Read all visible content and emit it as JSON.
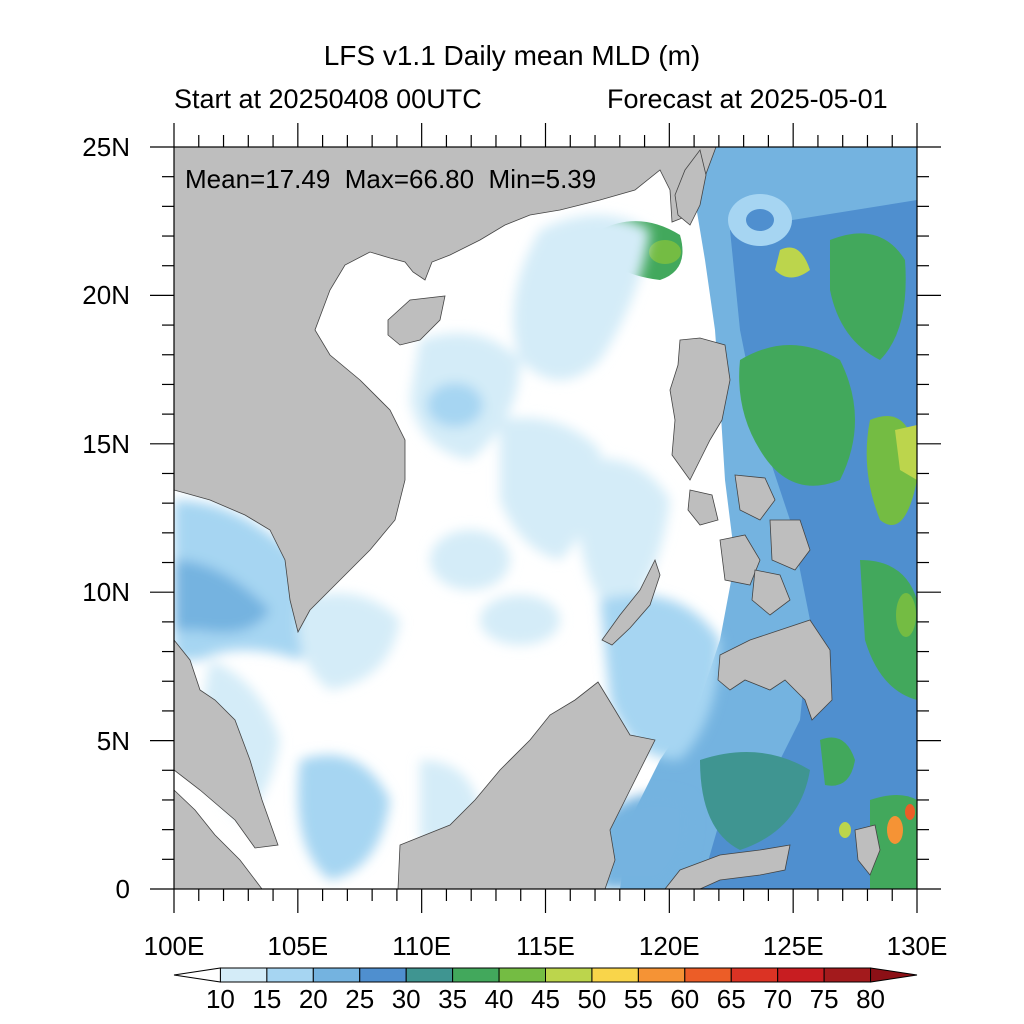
{
  "title": "LFS v1.1 Daily mean MLD (m)",
  "subtitle_left": "Start at 20250408 00UTC",
  "subtitle_right": "Forecast at 2025-05-01",
  "stats": "Mean=17.49  Max=66.80  Min=5.39",
  "axes": {
    "lon_ticks": [
      "100E",
      "105E",
      "110E",
      "115E",
      "120E",
      "125E",
      "130E"
    ],
    "lat_ticks": [
      "0",
      "5N",
      "10N",
      "15N",
      "20N",
      "25N"
    ],
    "lon_range": [
      100,
      130
    ],
    "lat_range": [
      0,
      25
    ]
  },
  "colorbar": {
    "labels": [
      "10",
      "15",
      "20",
      "25",
      "30",
      "35",
      "40",
      "45",
      "50",
      "55",
      "60",
      "65",
      "70",
      "75",
      "80"
    ],
    "colors": [
      "#ffffff",
      "#d4ecf8",
      "#a6d5f2",
      "#74b3e0",
      "#4f8fcf",
      "#3f9591",
      "#42a85c",
      "#74bc43",
      "#bcd54c",
      "#f9d54a",
      "#f59335",
      "#ec5d27",
      "#db3324",
      "#c81d21",
      "#a31a1c",
      "#8c1016"
    ]
  },
  "colors": {
    "land": "#bebebe",
    "frame": "#000000"
  }
}
